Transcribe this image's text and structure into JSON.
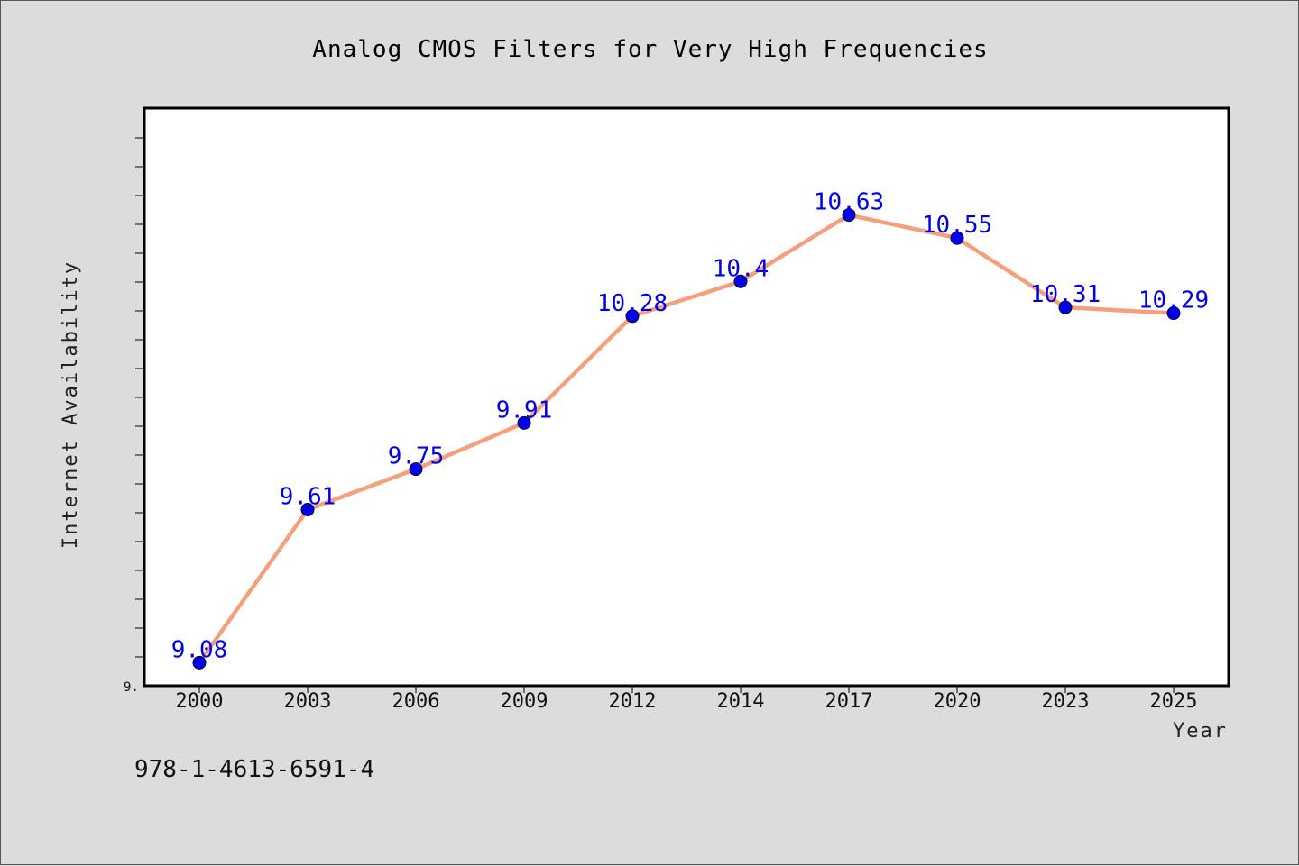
{
  "chart_data": {
    "type": "line",
    "title": "Analog CMOS Filters for Very High Frequencies",
    "xlabel": "Year",
    "ylabel": "Internet Availability",
    "categories": [
      "2000",
      "2003",
      "2006",
      "2009",
      "2012",
      "2014",
      "2017",
      "2020",
      "2023",
      "2025"
    ],
    "series": [
      {
        "values": [
          9.08,
          9.61,
          9.75,
          9.91,
          10.28,
          10.4,
          10.63,
          10.55,
          10.31,
          10.29
        ],
        "labels": [
          "9.08",
          "9.61",
          "9.75",
          "9.91",
          "10.28",
          "10.4",
          "10.63",
          "10.55",
          "10.31",
          "10.29"
        ],
        "line_color": "#f4a07c",
        "marker_color": "#0000ee"
      }
    ],
    "ylim": [
      9.0,
      11.0
    ],
    "y_tick_label": "9.",
    "grid": false,
    "legend": "none"
  },
  "footer": {
    "isbn": "978-1-4613-6591-4"
  },
  "colors": {
    "background": "#dcdcdc",
    "plot_area": "#ffffff",
    "data_label": "#0000ee"
  }
}
